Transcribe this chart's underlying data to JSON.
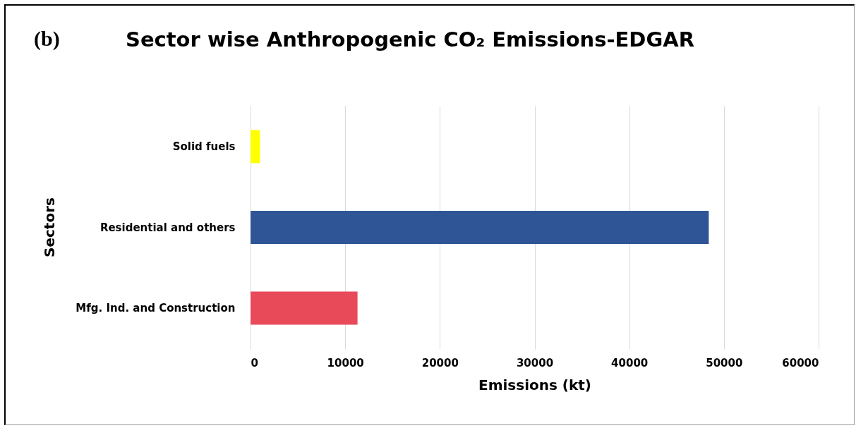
{
  "chart_data": {
    "type": "bar",
    "orientation": "horizontal",
    "title": "Sector wise Anthropogenic CO₂ Emissions-EDGAR",
    "annotations": [
      "(b)"
    ],
    "xlabel": "Emissions (kt)",
    "ylabel": "Sectors",
    "categories": [
      "Solid fuels",
      "Residential and others",
      "Mfg. Ind. and Construction"
    ],
    "values": [
      1000,
      48400,
      11300
    ],
    "colors": [
      "#ffff00",
      "#2f5597",
      "#e84a5a"
    ],
    "xlim": [
      0,
      60000
    ],
    "xticks": [
      0,
      10000,
      20000,
      30000,
      40000,
      50000,
      60000
    ],
    "grid": "x",
    "legend": false
  }
}
